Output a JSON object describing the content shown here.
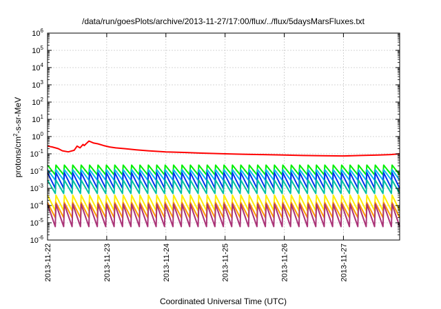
{
  "chart_data": {
    "type": "line",
    "title": "/data/run/goesPlots/archive/2013-11-27/17:00/flux/../flux/5daysMarsFluxes.txt",
    "xlabel": "Coordinated Universal Time (UTC)",
    "ylabel": {
      "pre": "protons/cm",
      "sup": "2",
      "post": "-s-sr-MeV"
    },
    "x_ticks": [
      "2013-11-22",
      "2013-11-23",
      "2013-11-24",
      "2013-11-25",
      "2013-11-26",
      "2013-11-27"
    ],
    "x_range_days": [
      0,
      5.95
    ],
    "y_scale": "log",
    "y_ticks": [
      {
        "base": "10",
        "exp": "6"
      },
      {
        "base": "10",
        "exp": "5"
      },
      {
        "base": "10",
        "exp": "4"
      },
      {
        "base": "10",
        "exp": "3"
      },
      {
        "base": "10",
        "exp": "2"
      },
      {
        "base": "10",
        "exp": "1"
      },
      {
        "base": "10",
        "exp": "0"
      },
      {
        "base": "10",
        "exp": "-1"
      },
      {
        "base": "10",
        "exp": "-2"
      },
      {
        "base": "10",
        "exp": "-3"
      },
      {
        "base": "10",
        "exp": "-4"
      },
      {
        "base": "10",
        "exp": "-5"
      },
      {
        "base": "10",
        "exp": "-6"
      }
    ],
    "ylim": [
      1e-06,
      1000000.0
    ],
    "grid": true,
    "series": [
      {
        "color": "#ff0000",
        "sawtooth": false,
        "points": [
          [
            0,
            0.28
          ],
          [
            0.08,
            0.25
          ],
          [
            0.18,
            0.2
          ],
          [
            0.25,
            0.15
          ],
          [
            0.35,
            0.13
          ],
          [
            0.45,
            0.16
          ],
          [
            0.5,
            0.28
          ],
          [
            0.55,
            0.22
          ],
          [
            0.6,
            0.35
          ],
          [
            0.62,
            0.3
          ],
          [
            0.7,
            0.55
          ],
          [
            0.78,
            0.42
          ],
          [
            0.85,
            0.38
          ],
          [
            0.95,
            0.3
          ],
          [
            1.05,
            0.25
          ],
          [
            1.15,
            0.22
          ],
          [
            1.3,
            0.2
          ],
          [
            1.5,
            0.17
          ],
          [
            1.7,
            0.15
          ],
          [
            2.0,
            0.13
          ],
          [
            2.3,
            0.12
          ],
          [
            2.6,
            0.11
          ],
          [
            3.0,
            0.1
          ],
          [
            3.3,
            0.095
          ],
          [
            3.6,
            0.09
          ],
          [
            4.0,
            0.085
          ],
          [
            4.3,
            0.08
          ],
          [
            4.6,
            0.078
          ],
          [
            5.0,
            0.075
          ],
          [
            5.3,
            0.08
          ],
          [
            5.6,
            0.085
          ],
          [
            5.8,
            0.09
          ],
          [
            5.95,
            0.1
          ]
        ]
      },
      {
        "color": "#00ee00",
        "low": 0.006,
        "high": 0.022
      },
      {
        "color": "#00bbee",
        "low": 0.003,
        "high": 0.012
      },
      {
        "color": "#0033ee",
        "low": 0.001,
        "high": 0.008
      },
      {
        "color": "#00c0a0",
        "low": 0.0005,
        "high": 0.003
      },
      {
        "color": "#ffee00",
        "low": 5e-05,
        "high": 0.0004
      },
      {
        "color": "#ff9900",
        "low": 2e-05,
        "high": 0.00015
      },
      {
        "color": "#aa3377",
        "low": 6e-06,
        "high": 0.00012
      }
    ]
  }
}
